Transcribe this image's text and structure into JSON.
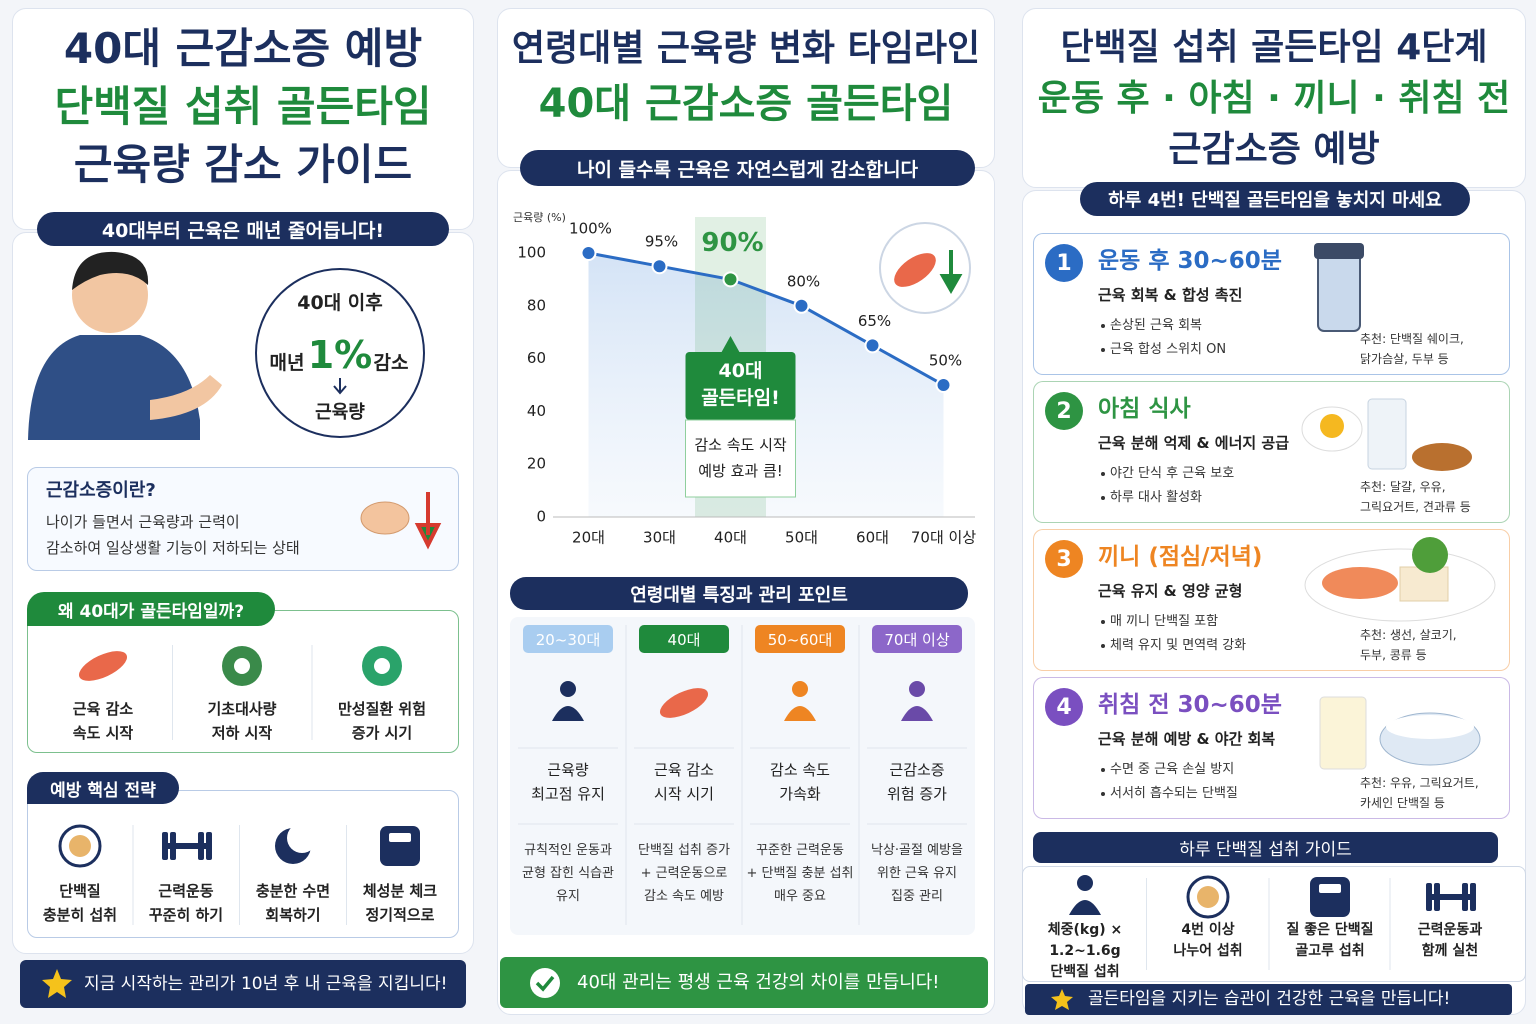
{
  "panel1": {
    "title": [
      "40대 근감소증 예방",
      "단백질 섭취 골든타임",
      "근육량 감소 가이드"
    ],
    "banner": "40대부터 근육은 매년 줄어듭니다!",
    "circle": {
      "top": "40대 이후",
      "prefix": "매년",
      "big": "1%",
      "suffix": "감소",
      "bottom": "근육량"
    },
    "definition": {
      "title": "근감소증이란?",
      "text": "나이가 들면서 근육량과 근력이\n감소하여 일상생활 기능이 저하되는 상태"
    },
    "why": {
      "title": "왜 40대가 골든타임일까?",
      "items": [
        "근육 감소\n속도 시작",
        "기초대사량\n저하 시작",
        "만성질환 위험\n증가 시기"
      ]
    },
    "strategy": {
      "title": "예방 핵심 전략",
      "items": [
        "단백질\n충분히 섭취",
        "근력운동\n꾸준히 하기",
        "충분한 수면\n회복하기",
        "체성분 체크\n정기적으로"
      ]
    },
    "footer": "지금 시작하는 관리가 10년 후 내 근육을 지킵니다!"
  },
  "chart_data": {
    "type": "line",
    "y_label": "근육량 (%)",
    "categories": [
      "20대",
      "30대",
      "40대",
      "50대",
      "60대",
      "70대 이상"
    ],
    "values": [
      100,
      95,
      90,
      80,
      65,
      50
    ],
    "value_labels": [
      "100%",
      "95%",
      "90%",
      "80%",
      "65%",
      "50%"
    ],
    "color": "#2b6cc4",
    "highlight": "40대",
    "highlight_color": "#2e9443",
    "ylim": [
      0,
      100
    ],
    "yticks": [
      0,
      20,
      40,
      60,
      80,
      100
    ]
  },
  "panel2": {
    "title": [
      "연령대별 근육량 변화 타임라인",
      "40대 근감소증 골든타임"
    ],
    "banner": "나이 들수록 근육은 자연스럽게 감소합니다",
    "callout": {
      "title": "40대\n골든타임!",
      "text": "감소 속도 시작\n예방 효과 큼!"
    },
    "stages_title": "연령대별 특징과 관리 포인트",
    "stages": [
      {
        "label": "20~30대",
        "feature": "근육량\n최고점 유지",
        "tip": "규칙적인 운동과\n균형 잡힌 식습관\n유지"
      },
      {
        "label": "40대",
        "feature": "근육 감소\n시작 시기",
        "tip": "단백질 섭취 증가\n+ 근력운동으로\n감소 속도 예방"
      },
      {
        "label": "50~60대",
        "feature": "감소 속도\n가속화",
        "tip": "꾸준한 근력운동\n+ 단백질 충분 섭취\n매우 중요"
      },
      {
        "label": "70대 이상",
        "feature": "근감소증\n위험 증가",
        "tip": "낙상·골절 예방을\n위한 근육 유지\n집중 관리"
      }
    ],
    "footer": "40대 관리는 평생 근육 건강의 차이를 만듭니다!"
  },
  "panel3": {
    "title": [
      "단백질 섭취 골든타임 4단계",
      "운동 후 · 아침 · 끼니 · 취침 전",
      "근감소증 예방"
    ],
    "banner": "하루 4번! 단백질 골든타임을 놓치지 마세요",
    "steps": [
      {
        "number": "1",
        "title": "운동 후 30~60분",
        "subtitle": "근육 회복 & 합성 촉진",
        "bullets": [
          "손상된 근육 회복",
          "근육 합성 스위치 ON"
        ],
        "recommend": "추천: 단백질 쉐이크,\n닭가슴살, 두부 등"
      },
      {
        "number": "2",
        "title": "아침 식사",
        "subtitle": "근육 분해 억제 & 에너지 공급",
        "bullets": [
          "야간 단식 후 근육 보호",
          "하루 대사 활성화"
        ],
        "recommend": "추천: 달걀, 우유,\n그릭요거트, 견과류 등"
      },
      {
        "number": "3",
        "title": "끼니 (점심/저녁)",
        "subtitle": "근육 유지 & 영양 균형",
        "bullets": [
          "매 끼니 단백질 포함",
          "체력 유지 및 면역력 강화"
        ],
        "recommend": "추천: 생선, 살코기,\n두부, 콩류 등"
      },
      {
        "number": "4",
        "title": "취침 전 30~60분",
        "subtitle": "근육 분해 예방 & 야간 회복",
        "bullets": [
          "수면 중 근육 손실 방지",
          "서서히 흡수되는 단백질"
        ],
        "recommend": "추천: 우유, 그릭요거트,\n카세인 단백질 등"
      }
    ],
    "guide_title": "하루 단백질 섭취 가이드",
    "guide": [
      "체중(kg) ×\n1.2~1.6g\n단백질 섭취",
      "4번 이상\n나누어 섭취",
      "질 좋은 단백질\n골고루 섭취",
      "근력운동과\n함께 실천"
    ],
    "footer": "골든타임을 지키는 습관이 건강한 근육을 만듭니다!"
  }
}
